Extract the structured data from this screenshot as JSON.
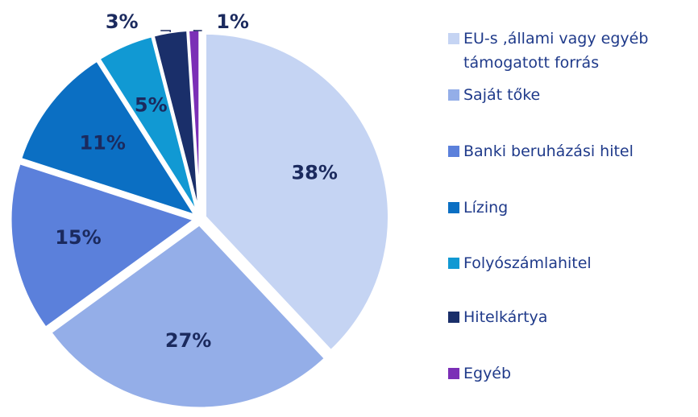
{
  "chart_data": {
    "type": "pie",
    "categories": [
      "EU-s ,állami vagy egyéb támogatott forrás",
      "Saját tőke",
      "Banki beruházási hitel",
      "Lízing",
      "Folyószámlahitel",
      "Hitelkártya",
      "Egyéb"
    ],
    "values": [
      38,
      27,
      15,
      11,
      5,
      3,
      1
    ],
    "value_labels": [
      "38%",
      "27%",
      "15%",
      "11%",
      "5%",
      "3%",
      "1%"
    ],
    "colors": [
      "#c5d4f3",
      "#94aee8",
      "#5b80db",
      "#0b6fc3",
      "#1199d3",
      "#1a2f6a",
      "#7b2fb6"
    ],
    "legend": "right"
  }
}
